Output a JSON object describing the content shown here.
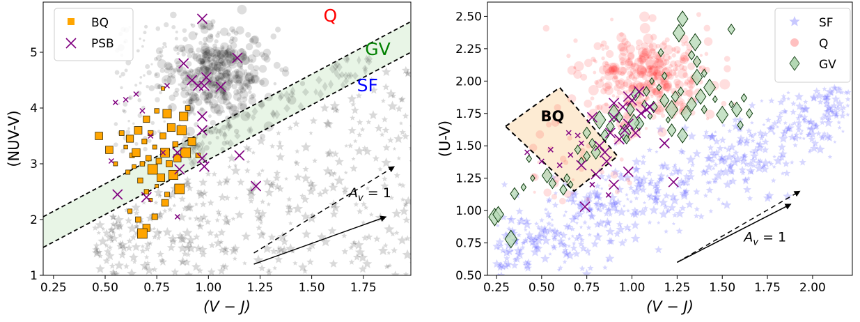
{
  "chart_data": [
    {
      "type": "scatter",
      "xlabel": "(V − J)",
      "ylabel": "(NUV-V)",
      "xlim": [
        0.2,
        1.98
      ],
      "ylim": [
        1.0,
        5.9
      ],
      "xticks": [
        "0.25",
        "0.50",
        "0.75",
        "1.00",
        "1.25",
        "1.50",
        "1.75"
      ],
      "yticks": [
        "1",
        "2",
        "3",
        "4",
        "5"
      ],
      "legend": {
        "position": "top-left",
        "entries": [
          "BQ",
          "PSB"
        ]
      },
      "region_labels": [
        {
          "text": "Q",
          "color": "#ff0000",
          "x": 1.59,
          "y": 5.55
        },
        {
          "text": "GV",
          "color": "#008000",
          "x": 1.82,
          "y": 4.95
        },
        {
          "text": "SF",
          "color": "#0000ff",
          "x": 1.77,
          "y": 4.3
        }
      ],
      "boundaries": [
        {
          "x": [
            0.2,
            1.98
          ],
          "y": [
            2.05,
            5.55
          ],
          "style": "dashed"
        },
        {
          "x": [
            0.2,
            1.98
          ],
          "y": [
            1.5,
            5.0
          ],
          "style": "dashed"
        }
      ],
      "green_valley_band": {
        "x": [
          0.2,
          1.98
        ],
        "upper": [
          2.05,
          5.55
        ],
        "lower": [
          1.5,
          5.0
        ],
        "color": "#e8f5e6"
      },
      "reddening_vectors": [
        {
          "label": "A_v = 1",
          "style": "dashed",
          "x": [
            1.22,
            1.9
          ],
          "y": [
            1.4,
            2.95
          ]
        },
        {
          "label": "",
          "style": "solid",
          "x": [
            1.22,
            1.86
          ],
          "y": [
            1.2,
            2.05
          ]
        }
      ],
      "vector_label": {
        "text": "A",
        "sub": "v",
        "tail": " = 1",
        "x": 1.68,
        "y": 2.4
      },
      "series": [
        {
          "name": "BQ",
          "marker": "square",
          "color": "#ffa500",
          "edge": "#3a2a00",
          "points": [
            [
              0.47,
              3.5
            ],
            [
              0.52,
              3.25
            ],
            [
              0.55,
              3.0
            ],
            [
              0.58,
              3.55
            ],
            [
              0.6,
              3.3
            ],
            [
              0.61,
              2.85
            ],
            [
              0.62,
              3.45
            ],
            [
              0.63,
              3.15
            ],
            [
              0.64,
              2.95
            ],
            [
              0.65,
              3.2
            ],
            [
              0.66,
              3.6
            ],
            [
              0.67,
              2.7
            ],
            [
              0.68,
              3.0
            ],
            [
              0.69,
              3.4
            ],
            [
              0.7,
              2.5
            ],
            [
              0.7,
              3.8
            ],
            [
              0.71,
              3.1
            ],
            [
              0.72,
              2.35
            ],
            [
              0.72,
              3.55
            ],
            [
              0.73,
              2.9
            ],
            [
              0.74,
              3.3
            ],
            [
              0.75,
              2.6
            ],
            [
              0.75,
              3.95
            ],
            [
              0.76,
              3.05
            ],
            [
              0.77,
              2.75
            ],
            [
              0.78,
              3.5
            ],
            [
              0.78,
              4.35
            ],
            [
              0.79,
              3.2
            ],
            [
              0.8,
              2.45
            ],
            [
              0.8,
              3.9
            ],
            [
              0.81,
              3.0
            ],
            [
              0.82,
              3.65
            ],
            [
              0.83,
              2.8
            ],
            [
              0.84,
              3.35
            ],
            [
              0.85,
              3.1
            ],
            [
              0.86,
              2.55
            ],
            [
              0.87,
              3.6
            ],
            [
              0.88,
              3.85
            ],
            [
              0.89,
              3.2
            ],
            [
              0.9,
              4.0
            ],
            [
              0.92,
              3.4
            ],
            [
              0.95,
              3.15
            ],
            [
              0.62,
              2.15
            ],
            [
              0.66,
              2.0
            ],
            [
              0.7,
              1.85
            ],
            [
              0.74,
              2.05
            ],
            [
              0.68,
              1.75
            ],
            [
              0.79,
              2.3
            ]
          ]
        },
        {
          "name": "PSB",
          "marker": "x",
          "color": "#800080",
          "points": [
            [
              0.97,
              5.6
            ],
            [
              0.88,
              4.8
            ],
            [
              0.92,
              4.5
            ],
            [
              0.95,
              4.4
            ],
            [
              0.98,
              4.4
            ],
            [
              1.06,
              4.38
            ],
            [
              0.99,
              4.55
            ],
            [
              1.14,
              4.9
            ],
            [
              0.97,
              3.85
            ],
            [
              0.97,
              3.6
            ],
            [
              0.85,
              3.2
            ],
            [
              0.86,
              2.9
            ],
            [
              0.97,
              3.1
            ],
            [
              0.98,
              2.95
            ],
            [
              0.56,
              2.45
            ],
            [
              0.7,
              2.4
            ],
            [
              1.15,
              3.15
            ],
            [
              1.23,
              2.6
            ]
          ]
        },
        {
          "name": "PSB-small",
          "marker": "x-small",
          "color": "#800080",
          "points": [
            [
              0.55,
              4.1
            ],
            [
              0.65,
              4.25
            ],
            [
              0.8,
              4.4
            ],
            [
              0.53,
              3.05
            ],
            [
              0.85,
              2.05
            ],
            [
              0.72,
              3.5
            ],
            [
              0.6,
              4.15
            ],
            [
              0.78,
              3.2
            ],
            [
              0.68,
              3.95
            ]
          ]
        }
      ]
    },
    {
      "type": "scatter",
      "xlabel": "(V − J)",
      "ylabel": "(U-V)",
      "xlim": [
        0.2,
        2.22
      ],
      "ylim": [
        0.5,
        2.61
      ],
      "xticks": [
        "0.25",
        "0.50",
        "0.75",
        "1.00",
        "1.25",
        "1.50",
        "1.75",
        "2.00"
      ],
      "yticks": [
        "0.50",
        "0.75",
        "1.00",
        "1.25",
        "1.50",
        "1.75",
        "2.00",
        "2.25",
        "2.50"
      ],
      "legend": {
        "position": "top-right",
        "entries": [
          "SF",
          "Q",
          "GV"
        ]
      },
      "bq_region": {
        "label": "BQ",
        "x": [
          0.3,
          0.6,
          0.92,
          0.68,
          0.3
        ],
        "y": [
          1.65,
          1.95,
          1.42,
          1.15,
          1.65
        ],
        "fill": "#fdebd3"
      },
      "reddening_vectors": [
        {
          "label": "A_v = 1",
          "style": "dashed",
          "x": [
            1.25,
            1.93
          ],
          "y": [
            0.6,
            1.15
          ]
        },
        {
          "label": "",
          "style": "solid",
          "x": [
            1.25,
            1.88
          ],
          "y": [
            0.6,
            1.05
          ]
        }
      ],
      "vector_label": {
        "text": "A",
        "sub": "v",
        "tail": " = 1",
        "x": 1.62,
        "y": 0.76
      },
      "series": [
        {
          "name": "SF",
          "marker": "star",
          "color": "#7d7dff"
        },
        {
          "name": "Q",
          "marker": "circle",
          "color": "#ff6b6b"
        },
        {
          "name": "GV",
          "marker": "diamond",
          "color": "#b4d8b4",
          "edge": "#0c3a0c",
          "points": [
            [
              0.24,
              0.95
            ],
            [
              0.26,
              0.97
            ],
            [
              0.33,
              0.78
            ],
            [
              0.35,
              1.13
            ],
            [
              0.4,
              1.18
            ],
            [
              0.45,
              1.25
            ],
            [
              0.43,
              1.4
            ],
            [
              0.53,
              1.27
            ],
            [
              0.56,
              1.21
            ],
            [
              0.62,
              1.16
            ],
            [
              0.64,
              1.25
            ],
            [
              0.66,
              1.2
            ],
            [
              0.7,
              1.47
            ],
            [
              0.72,
              1.38
            ],
            [
              0.75,
              1.6
            ],
            [
              0.78,
              1.52
            ],
            [
              0.82,
              1.7
            ],
            [
              0.85,
              1.58
            ],
            [
              0.88,
              1.65
            ],
            [
              0.9,
              1.75
            ],
            [
              0.93,
              1.72
            ],
            [
              0.96,
              1.6
            ],
            [
              0.99,
              1.78
            ],
            [
              1.02,
              1.9
            ],
            [
              1.04,
              1.67
            ],
            [
              1.07,
              1.82
            ],
            [
              1.1,
              1.73
            ],
            [
              1.12,
              1.8
            ],
            [
              1.15,
              1.95
            ],
            [
              1.18,
              1.85
            ],
            [
              1.2,
              1.7
            ],
            [
              1.22,
              1.78
            ],
            [
              1.24,
              1.88
            ],
            [
              1.27,
              1.92
            ],
            [
              1.3,
              1.75
            ],
            [
              1.33,
              1.82
            ],
            [
              1.36,
              2.03
            ],
            [
              1.38,
              1.88
            ],
            [
              1.4,
              1.78
            ],
            [
              1.43,
              1.95
            ],
            [
              1.46,
              1.86
            ],
            [
              1.5,
              1.74
            ],
            [
              1.55,
              1.82
            ],
            [
              1.58,
              1.78
            ],
            [
              1.62,
              1.87
            ],
            [
              1.65,
              1.75
            ],
            [
              1.16,
              2.22
            ],
            [
              1.26,
              2.37
            ],
            [
              1.33,
              2.2
            ],
            [
              1.4,
              2.06
            ],
            [
              1.35,
              2.3
            ],
            [
              1.28,
              2.48
            ],
            [
              1.36,
              2.15
            ],
            [
              1.11,
              2.0
            ],
            [
              1.18,
              2.04
            ],
            [
              1.08,
              1.92
            ],
            [
              1.22,
              1.62
            ],
            [
              1.28,
              1.58
            ],
            [
              1.6,
              1.66
            ],
            [
              1.55,
              2.4
            ],
            [
              0.97,
              1.55
            ],
            [
              1.01,
              1.68
            ],
            [
              0.8,
              1.45
            ],
            [
              0.75,
              1.42
            ]
          ]
        },
        {
          "name": "PSB",
          "marker": "x",
          "color": "#800080",
          "points": [
            [
              0.74,
              1.03
            ],
            [
              0.9,
              1.72
            ],
            [
              0.95,
              1.8
            ],
            [
              0.98,
              1.88
            ],
            [
              1.0,
              1.85
            ],
            [
              1.05,
              1.75
            ],
            [
              0.85,
              1.45
            ],
            [
              0.88,
              1.6
            ],
            [
              0.93,
              1.55
            ],
            [
              0.98,
              1.67
            ],
            [
              0.78,
              1.72
            ],
            [
              0.82,
              1.5
            ],
            [
              0.86,
              1.38
            ],
            [
              1.08,
              1.78
            ],
            [
              1.18,
              1.52
            ],
            [
              1.23,
              1.22
            ],
            [
              1.02,
              1.6
            ],
            [
              0.9,
              1.83
            ],
            [
              0.96,
              1.62
            ],
            [
              1.1,
              1.8
            ],
            [
              1.04,
              1.92
            ],
            [
              0.8,
              1.28
            ],
            [
              0.72,
              1.35
            ],
            [
              0.9,
              1.2
            ],
            [
              0.98,
              1.3
            ]
          ]
        },
        {
          "name": "PSB-small",
          "marker": "x-small",
          "color": "#800080",
          "points": [
            [
              0.42,
              1.45
            ],
            [
              0.5,
              1.38
            ],
            [
              0.55,
              1.47
            ],
            [
              0.65,
              1.6
            ],
            [
              0.66,
              1.43
            ],
            [
              0.72,
              1.52
            ],
            [
              0.87,
              1.12
            ],
            [
              0.78,
              1.2
            ],
            [
              0.6,
              1.35
            ],
            [
              0.7,
              1.58
            ]
          ]
        }
      ]
    }
  ]
}
